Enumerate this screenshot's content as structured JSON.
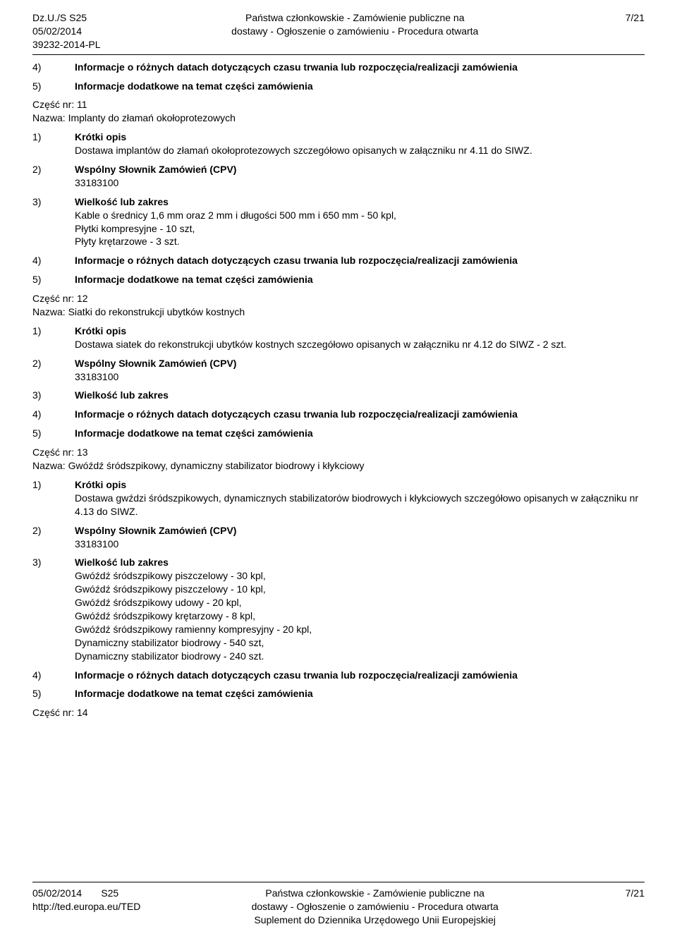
{
  "header": {
    "left_line1": "Dz.U./S S25",
    "left_line2": "05/02/2014",
    "left_line3": "39232-2014-PL",
    "center_line1": "Państwa członkowskie - Zamówienie publiczne na",
    "center_line2": "dostawy - Ogłoszenie o zamówieniu - Procedura otwarta",
    "right": "7/21"
  },
  "sections": [
    {
      "items": [
        {
          "num": "4)",
          "bold": true,
          "text": "Informacje o różnych datach dotyczących czasu trwania lub rozpoczęcia/realizacji zamówienia"
        },
        {
          "num": "5)",
          "bold": true,
          "text": "Informacje dodatkowe na temat części zamówienia"
        }
      ]
    },
    {
      "heading_lines": [
        "Część nr: 11",
        "Nazwa: Implanty do złamań okołoprotezowych"
      ],
      "items": [
        {
          "num": "1)",
          "bold": true,
          "text": "Krótki opis",
          "body": [
            "Dostawa implantów do złamań okołoprotezowych szczegółowo opisanych w załączniku nr 4.11 do SIWZ."
          ]
        },
        {
          "num": "2)",
          "bold": true,
          "text": "Wspólny Słownik Zamówień (CPV)",
          "body": [
            "33183100"
          ]
        },
        {
          "num": "3)",
          "bold": true,
          "text": "Wielkość lub zakres",
          "body": [
            "Kable o średnicy 1,6 mm oraz 2 mm i długości 500 mm i 650 mm - 50 kpl,",
            "Płytki kompresyjne - 10 szt,",
            "Płyty krętarzowe - 3 szt."
          ]
        },
        {
          "num": "4)",
          "bold": true,
          "text": "Informacje o różnych datach dotyczących czasu trwania lub rozpoczęcia/realizacji zamówienia"
        },
        {
          "num": "5)",
          "bold": true,
          "text": "Informacje dodatkowe na temat części zamówienia"
        }
      ]
    },
    {
      "heading_lines": [
        "Część nr: 12",
        "Nazwa: Siatki do rekonstrukcji ubytków kostnych"
      ],
      "items": [
        {
          "num": "1)",
          "bold": true,
          "text": "Krótki opis",
          "body": [
            "Dostawa siatek do rekonstrukcji ubytków kostnych szczegółowo opisanych w załączniku nr 4.12 do SIWZ - 2 szt."
          ]
        },
        {
          "num": "2)",
          "bold": true,
          "text": "Wspólny Słownik Zamówień (CPV)",
          "body": [
            "33183100"
          ]
        },
        {
          "num": "3)",
          "bold": true,
          "text": "Wielkość lub zakres"
        },
        {
          "num": "4)",
          "bold": true,
          "text": "Informacje o różnych datach dotyczących czasu trwania lub rozpoczęcia/realizacji zamówienia"
        },
        {
          "num": "5)",
          "bold": true,
          "text": "Informacje dodatkowe na temat części zamówienia"
        }
      ]
    },
    {
      "heading_lines": [
        "Część nr: 13",
        "Nazwa: Gwóźdź śródszpikowy, dynamiczny stabilizator biodrowy i kłykciowy"
      ],
      "items": [
        {
          "num": "1)",
          "bold": true,
          "text": "Krótki opis",
          "body": [
            "Dostawa gwździ śródszpikowych, dynamicznych stabilizatorów biodrowych i kłykciowych szczegółowo opisanych w załączniku nr 4.13 do SIWZ."
          ]
        },
        {
          "num": "2)",
          "bold": true,
          "text": "Wspólny Słownik Zamówień (CPV)",
          "body": [
            "33183100"
          ]
        },
        {
          "num": "3)",
          "bold": true,
          "text": "Wielkość lub zakres",
          "body": [
            "Gwóźdź śródszpikowy piszczelowy - 30 kpl,",
            "Gwóźdź śródszpikowy piszczelowy - 10 kpl,",
            "Gwóźdź śródszpikowy udowy - 20 kpl,",
            "Gwóźdź śródszpikowy krętarzowy - 8 kpl,",
            "Gwóźdź śródszpikowy ramienny kompresyjny - 20 kpl,",
            "Dynamiczny stabilizator biodrowy - 540 szt,",
            "Dynamiczny stabilizator biodrowy - 240 szt."
          ]
        },
        {
          "num": "4)",
          "bold": true,
          "text": "Informacje o różnych datach dotyczących czasu trwania lub rozpoczęcia/realizacji zamówienia"
        },
        {
          "num": "5)",
          "bold": true,
          "text": "Informacje dodatkowe na temat części zamówienia"
        }
      ]
    },
    {
      "heading_lines": [
        "Część nr: 14"
      ],
      "items": []
    }
  ],
  "footer": {
    "left_line1": "05/02/2014",
    "left_line1b": "S25",
    "left_line2": "http://ted.europa.eu/TED",
    "center_line1": "Państwa członkowskie - Zamówienie publiczne na",
    "center_line2": "dostawy - Ogłoszenie o zamówieniu - Procedura otwarta",
    "center_line3": "Suplement do Dziennika Urzędowego Unii Europejskiej",
    "right": "7/21"
  }
}
